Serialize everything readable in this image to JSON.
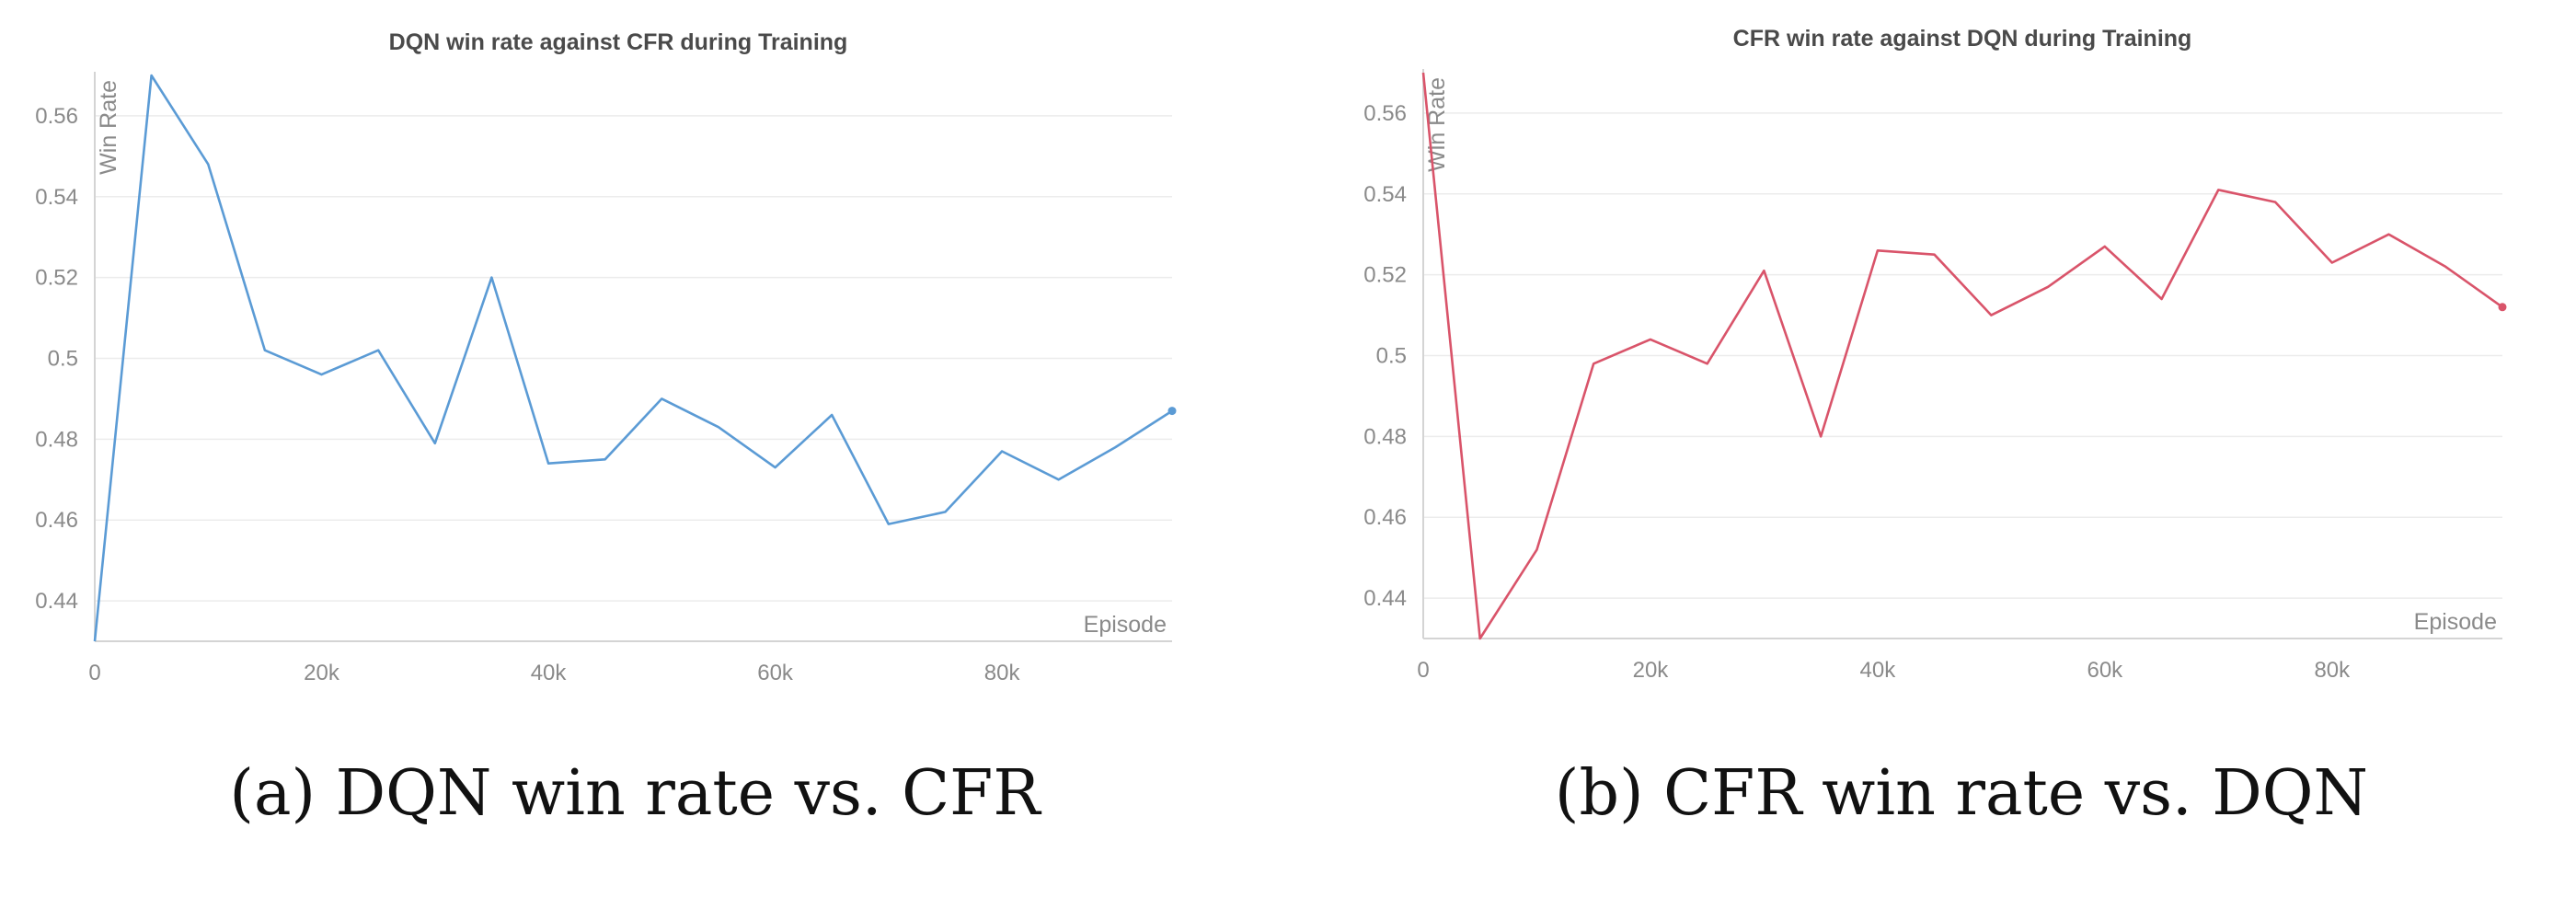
{
  "panels": [
    {
      "caption": "(a) DQN win rate vs. CFR",
      "color": "#5b9bd5",
      "chart_data": {
        "type": "line",
        "title": "DQN win rate against CFR during Training",
        "xlabel": "Episode",
        "ylabel": "Win Rate",
        "xlim": [
          0,
          95000
        ],
        "ylim": [
          0.43,
          0.57
        ],
        "grid": true,
        "x_ticks": [
          0,
          20000,
          40000,
          60000,
          80000
        ],
        "x_tick_labels": [
          "0",
          "20k",
          "40k",
          "60k",
          "80k"
        ],
        "y_ticks": [
          0.44,
          0.46,
          0.48,
          0.5,
          0.52,
          0.54,
          0.56
        ],
        "y_tick_labels": [
          "0.44",
          "0.46",
          "0.48",
          "0.5",
          "0.52",
          "0.54",
          "0.56"
        ],
        "series": [
          {
            "x": [
              0,
              5000,
              10000,
              15000,
              20000,
              25000,
              30000,
              35000,
              40000,
              45000,
              50000,
              55000,
              60000,
              65000,
              70000,
              75000,
              80000,
              85000,
              90000,
              95000
            ],
            "values": [
              0.43,
              0.57,
              0.548,
              0.502,
              0.496,
              0.502,
              0.479,
              0.52,
              0.474,
              0.475,
              0.49,
              0.483,
              0.473,
              0.486,
              0.459,
              0.462,
              0.477,
              0.47,
              0.478,
              0.487
            ]
          }
        ]
      }
    },
    {
      "caption": "(b) CFR win rate vs. DQN",
      "color": "#d9546a",
      "chart_data": {
        "type": "line",
        "title": "CFR win rate against DQN during Training",
        "xlabel": "Episode",
        "ylabel": "Win Rate",
        "xlim": [
          0,
          95000
        ],
        "ylim": [
          0.43,
          0.57
        ],
        "grid": true,
        "x_ticks": [
          0,
          20000,
          40000,
          60000,
          80000
        ],
        "x_tick_labels": [
          "0",
          "20k",
          "40k",
          "60k",
          "80k"
        ],
        "y_ticks": [
          0.44,
          0.46,
          0.48,
          0.5,
          0.52,
          0.54,
          0.56
        ],
        "y_tick_labels": [
          "0.44",
          "0.46",
          "0.48",
          "0.5",
          "0.52",
          "0.54",
          "0.56"
        ],
        "series": [
          {
            "x": [
              0,
              5000,
              10000,
              15000,
              20000,
              25000,
              30000,
              35000,
              40000,
              45000,
              50000,
              55000,
              60000,
              65000,
              70000,
              75000,
              80000,
              85000,
              90000,
              95000
            ],
            "values": [
              0.57,
              0.43,
              0.452,
              0.498,
              0.504,
              0.498,
              0.521,
              0.48,
              0.526,
              0.525,
              0.51,
              0.517,
              0.527,
              0.514,
              0.541,
              0.538,
              0.523,
              0.53,
              0.522,
              0.512
            ]
          }
        ]
      }
    }
  ]
}
